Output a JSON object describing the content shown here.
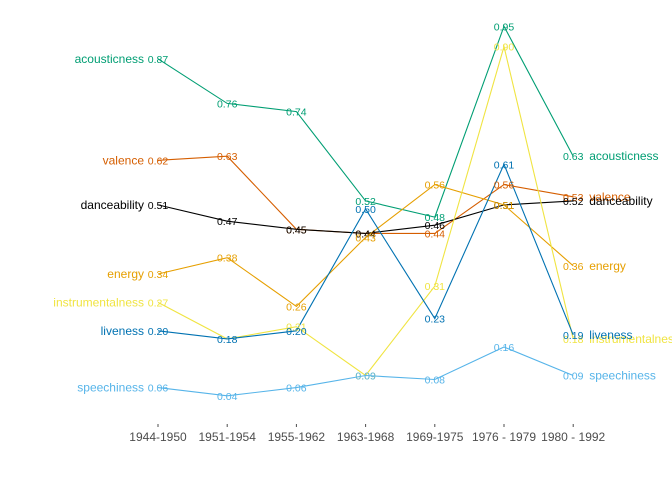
{
  "chart_data": {
    "type": "line",
    "title": "",
    "xlabel": "",
    "ylabel": "",
    "categories": [
      "1944-1950",
      "1951-1954",
      "1955-1962",
      "1963-1968",
      "1969-1975",
      "1976 - 1979",
      "1980 - 1992"
    ],
    "ylim": [
      0,
      1
    ],
    "grid": false,
    "legend": "none (series names labeled at line ends)",
    "series": [
      {
        "name": "acousticness",
        "color": "#009E73",
        "values": [
          0.87,
          0.76,
          0.74,
          0.52,
          0.48,
          0.95,
          0.63
        ],
        "labels": [
          "0.87",
          "0.76",
          "0.74",
          "0.52",
          "0.48",
          "0.95",
          "0.63"
        ]
      },
      {
        "name": "valence",
        "color": "#D55E00",
        "values": [
          0.62,
          0.63,
          0.45,
          0.44,
          0.44,
          0.56,
          0.53
        ],
        "labels": [
          "0.62",
          "0.63",
          "0.45",
          "0.44",
          "0.44",
          "0.56",
          "0.53"
        ]
      },
      {
        "name": "danceability",
        "color": "#000000",
        "values": [
          0.51,
          0.47,
          0.45,
          0.44,
          0.46,
          0.51,
          0.52
        ],
        "labels": [
          "0.51",
          "0.47",
          "0.45",
          "0.44",
          "0.46",
          "0.51",
          "0.52"
        ]
      },
      {
        "name": "energy",
        "color": "#E69F00",
        "values": [
          0.34,
          0.38,
          0.26,
          0.43,
          0.56,
          0.51,
          0.36
        ],
        "labels": [
          "0.34",
          "0.38",
          "0.26",
          "0.43",
          "0.56",
          "0.51",
          "0.36"
        ]
      },
      {
        "name": "instrumentalness",
        "color": "#F0E442",
        "values": [
          0.27,
          0.18,
          0.21,
          0.09,
          0.31,
          0.9,
          0.18
        ],
        "labels": [
          "0.27",
          "",
          "0.21",
          "0.09",
          "0.31",
          "0.90",
          "0.18"
        ]
      },
      {
        "name": "liveness",
        "color": "#0072B2",
        "values": [
          0.2,
          0.18,
          0.2,
          0.5,
          0.23,
          0.61,
          0.19
        ],
        "labels": [
          "0.20",
          "0.18",
          "0.20",
          "0.50",
          "0.23",
          "0.61",
          "0.19"
        ]
      },
      {
        "name": "speechiness",
        "color": "#56B4E9",
        "values": [
          0.06,
          0.04,
          0.06,
          0.09,
          0.08,
          0.16,
          0.09
        ],
        "labels": [
          "0.06",
          "0.04",
          "0.06",
          "0.09",
          "0.08",
          "0.16",
          "0.09"
        ]
      }
    ]
  }
}
